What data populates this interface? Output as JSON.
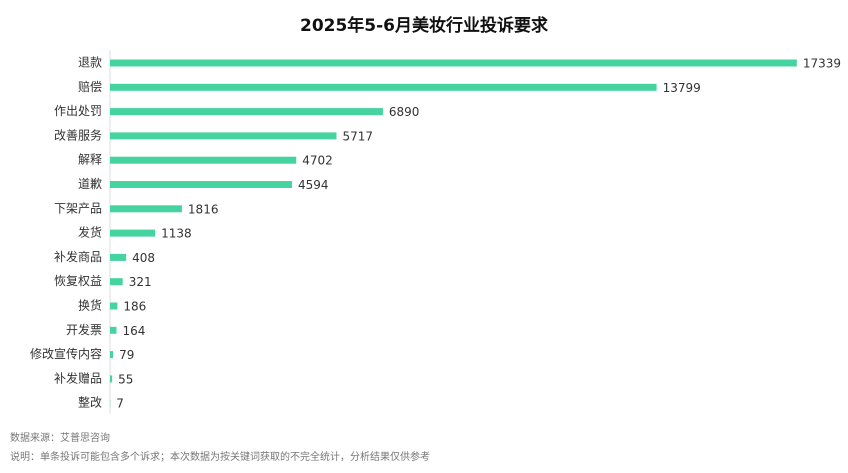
{
  "chart_data": {
    "type": "hbar",
    "title": "2025年5-6月美妆行业投诉要求",
    "categories": [
      "退款",
      "赔偿",
      "作出处罚",
      "改善服务",
      "解释",
      "道歉",
      "下架产品",
      "发货",
      "补发商品",
      "恢复权益",
      "换货",
      "开发票",
      "修改宣传内容",
      "补发赠品",
      "整改"
    ],
    "values": [
      17339,
      13799,
      6890,
      5717,
      4702,
      4594,
      1816,
      1138,
      408,
      321,
      186,
      164,
      79,
      55,
      7
    ],
    "color": "#45d3a0",
    "xlim": [
      0,
      18000
    ],
    "source": "数据来源：艾普思咨询",
    "note": "说明：单条投诉可能包含多个诉求；本次数据为按关键词获取的不完全统计，分析结果仅供参考"
  }
}
